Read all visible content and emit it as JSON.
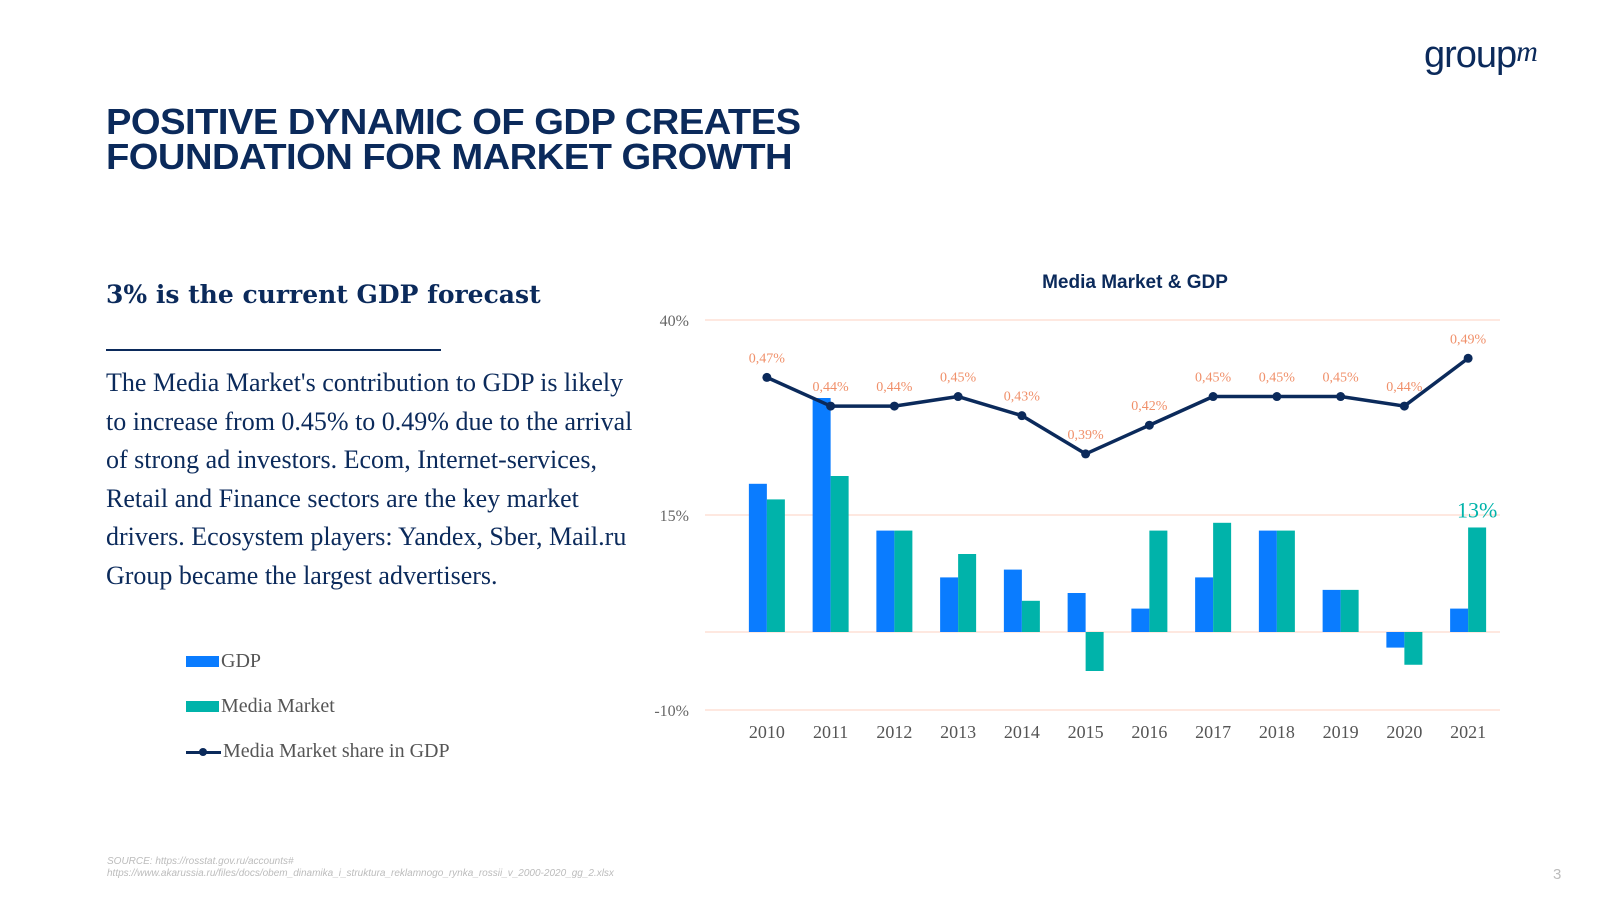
{
  "brand": {
    "logo_text": "group",
    "logo_superscript": "m"
  },
  "slide": {
    "title_line1": "POSITIVE DYNAMIC OF GDP CREATES",
    "title_line2": "FOUNDATION FOR MARKET GROWTH",
    "subtitle": "3% is the current GDP forecast",
    "body": "The Media Market's contribution to GDP is likely to increase from 0.45% to 0.49%  due to the arrival of strong ad investors. Ecom, Internet-services, Retail and Finance sectors are the key market drivers. Ecosystem players: Yandex, Sber, Mail.ru Group became the largest advertisers.",
    "source_line1": "SOURCE: https://rosstat.gov.ru/accounts#",
    "source_line2": "https://www.akarussia.ru/files/docs/obem_dinamika_i_struktura_reklamnogo_rynka_rossii_v_2000-2020_gg_2.xlsx",
    "page_number": "3"
  },
  "legend": [
    {
      "label": "GDP",
      "type": "bar",
      "color": "#0a7cff"
    },
    {
      "label": "Media Market",
      "type": "bar",
      "color": "#00b3aa"
    },
    {
      "label": "Media Market share in GDP",
      "type": "line",
      "color": "#0b2a5b"
    }
  ],
  "colors": {
    "gdp": "#0a7cff",
    "media_market": "#00b3aa",
    "share_line": "#0b2a5b",
    "share_labels": "#f0906a",
    "gridline": "#fde0d6",
    "title": "#0b2a5b",
    "axis_text": "#666666"
  },
  "chart_data": {
    "type": "bar",
    "title": "Media Market & GDP",
    "xlabel": "",
    "ylabel": "",
    "categories": [
      "2010",
      "2011",
      "2012",
      "2013",
      "2014",
      "2015",
      "2016",
      "2017",
      "2018",
      "2019",
      "2020",
      "2021"
    ],
    "ylim": [
      -10,
      40
    ],
    "yticks": [
      -10,
      15,
      40
    ],
    "ytick_labels": [
      "-10%",
      "15%",
      "40%"
    ],
    "grid": true,
    "legend_position": "left",
    "series": [
      {
        "name": "GDP",
        "type": "bar",
        "values": [
          19,
          30,
          13,
          7,
          8,
          5,
          3,
          7,
          13,
          5.4,
          -2,
          3
        ]
      },
      {
        "name": "Media Market",
        "type": "bar",
        "values": [
          17,
          20,
          13,
          10,
          4,
          -5,
          13,
          14,
          13,
          5.4,
          -4.2,
          13.4
        ]
      },
      {
        "name": "Media Market share in GDP",
        "type": "line",
        "axis": "secondary",
        "values": [
          0.47,
          0.44,
          0.44,
          0.45,
          0.43,
          0.39,
          0.42,
          0.45,
          0.45,
          0.45,
          0.44,
          0.49
        ],
        "labels": [
          "0,47%",
          "0,44%",
          "0,44%",
          "0,45%",
          "0,43%",
          "0,39%",
          "0,42%",
          "0,45%",
          "0,45%",
          "0,45%",
          "0,44%",
          "0,49%"
        ]
      }
    ],
    "annotations": [
      {
        "category": "2021",
        "series": "Media Market",
        "text": "13%"
      }
    ]
  }
}
